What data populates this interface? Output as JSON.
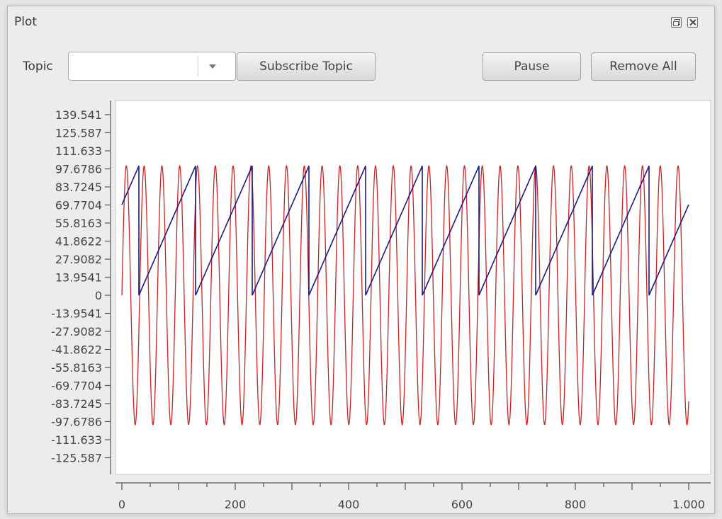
{
  "window": {
    "title": "Plot",
    "icons": [
      "float-icon",
      "close-icon"
    ]
  },
  "toolbar": {
    "topic_label": "Topic",
    "topic_value": "",
    "subscribe_label": "Subscribe Topic",
    "pause_label": "Pause",
    "remove_all_label": "Remove All"
  },
  "chart_data": {
    "type": "line",
    "xlim": [
      0,
      1000
    ],
    "ylim": [
      -139.541,
      139.541
    ],
    "x_ticks": [
      "0",
      "200",
      "400",
      "600",
      "800",
      "1.000"
    ],
    "x_tick_values": [
      0,
      200,
      400,
      600,
      800,
      1000
    ],
    "y_ticks": [
      "139.541",
      "125.587",
      "111.633",
      "97.6786",
      "83.7245",
      "69.7704",
      "55.8163",
      "41.8622",
      "27.9082",
      "13.9541",
      "0",
      "-13.9541",
      "-27.9082",
      "-41.8622",
      "-55.8163",
      "-69.7704",
      "-83.7245",
      "-97.6786",
      "-111.633",
      "-125.587"
    ],
    "y_tick_values": [
      139.541,
      125.587,
      111.633,
      97.6786,
      83.7245,
      69.7704,
      55.8163,
      41.8622,
      27.9082,
      13.9541,
      0,
      -13.9541,
      -27.9082,
      -41.8622,
      -55.8163,
      -69.7704,
      -83.7245,
      -97.6786,
      -111.633,
      -125.587
    ],
    "grid": false,
    "series": [
      {
        "kind": "sine",
        "color": "#cc2222",
        "amplitude": 100,
        "period": 31.4,
        "x_range": [
          0,
          1000
        ]
      },
      {
        "kind": "sawtooth",
        "color": "#1a1a8c",
        "min": 0,
        "max": 100,
        "period": 100,
        "x_range": [
          0,
          1000
        ],
        "start_value": 70
      }
    ]
  }
}
